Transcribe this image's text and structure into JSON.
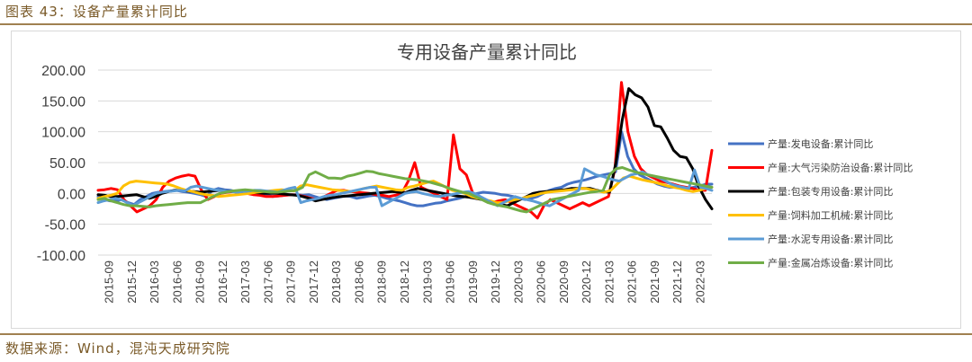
{
  "figure": {
    "title": "图表 43：设备产量累计同比",
    "source": "数据来源：Wind，混沌天成研究院"
  },
  "chart_data": {
    "type": "line",
    "title": "专用设备产量累计同比",
    "xlabel": "",
    "ylabel": "",
    "ylim": [
      -100,
      200
    ],
    "y_ticks": [
      "200.00",
      "150.00",
      "100.00",
      "50.00",
      "0.00",
      "-50.00",
      "-100.00"
    ],
    "y_tick_values": [
      200,
      150,
      100,
      50,
      0,
      -50,
      -100
    ],
    "x_tick_labels": [
      "2015-09",
      "2015-12",
      "2016-03",
      "2016-06",
      "2016-09",
      "2016-12",
      "2017-03",
      "2017-06",
      "2017-09",
      "2017-12",
      "2018-03",
      "2018-06",
      "2018-09",
      "2018-12",
      "2019-03",
      "2019-06",
      "2019-09",
      "2019-12",
      "2020-03",
      "2020-06",
      "2020-09",
      "2020-12",
      "2021-03",
      "2021-06",
      "2021-09",
      "2021-12",
      "2022-03"
    ],
    "grid": true,
    "legend_position": "right",
    "series": [
      {
        "name": "产量:发电设备:累计同比",
        "color": "#4472C4",
        "values": [
          -5,
          -10,
          -12,
          -12,
          -10,
          -15,
          -18,
          -10,
          -5,
          0,
          2,
          3,
          4,
          5,
          3,
          2,
          0,
          -2,
          -5,
          5,
          8,
          6,
          5,
          3,
          2,
          1,
          0,
          -2,
          -3,
          -5,
          -4,
          -3,
          -2,
          -2,
          -3,
          -2,
          -5,
          -8,
          -10,
          -8,
          -6,
          -4,
          -5,
          -8,
          -6,
          -4,
          -3,
          -5,
          -8,
          -10,
          -12,
          -15,
          -18,
          -20,
          -20,
          -18,
          -16,
          -15,
          -12,
          -10,
          -8,
          -5,
          -3,
          0,
          2,
          1,
          0,
          -2,
          -3,
          -5,
          -8,
          -10,
          -8,
          -5,
          0,
          5,
          8,
          10,
          15,
          18,
          20,
          22,
          25,
          28,
          30,
          32,
          35,
          100,
          60,
          40,
          30,
          25,
          20,
          15,
          12,
          10,
          10,
          8,
          8,
          10,
          12,
          15,
          15
        ]
      },
      {
        "name": "产量:大气污染防治设备:累计同比",
        "color": "#FF0000",
        "values": [
          5,
          6,
          8,
          6,
          -10,
          -20,
          -30,
          -25,
          -20,
          -10,
          10,
          20,
          25,
          28,
          30,
          28,
          5,
          -10,
          -5,
          0,
          2,
          3,
          1,
          0,
          -2,
          -3,
          -5,
          -5,
          -4,
          -3,
          -2,
          -3,
          -5,
          -8,
          -10,
          -5,
          0,
          5,
          5,
          3,
          2,
          1,
          0,
          -2,
          -3,
          -5,
          -3,
          0,
          20,
          50,
          10,
          5,
          0,
          -5,
          -10,
          95,
          40,
          30,
          0,
          -5,
          -10,
          -15,
          -12,
          -10,
          -15,
          -20,
          -25,
          -30,
          -40,
          -20,
          -10,
          -15,
          -20,
          -25,
          -20,
          -15,
          -20,
          -15,
          -10,
          -5,
          40,
          180,
          100,
          60,
          40,
          30,
          25,
          20,
          18,
          15,
          12,
          10,
          8,
          5,
          5,
          70
        ]
      },
      {
        "name": "产量:包装专用设备:累计同比",
        "color": "#000000",
        "values": [
          -2,
          -3,
          -5,
          -5,
          -4,
          -3,
          -2,
          -5,
          -8,
          -5,
          0,
          3,
          5,
          5,
          4,
          3,
          2,
          3,
          4,
          5,
          4,
          3,
          2,
          2,
          2,
          1,
          0,
          0,
          0,
          -1,
          -2,
          -3,
          -5,
          -8,
          -12,
          -10,
          -8,
          -6,
          -5,
          -4,
          -3,
          -2,
          -1,
          0,
          1,
          2,
          3,
          2,
          1,
          5,
          8,
          6,
          4,
          2,
          0,
          -2,
          -4,
          -5,
          -6,
          -8,
          -10,
          -12,
          -15,
          -18,
          -20,
          -15,
          -10,
          -5,
          0,
          2,
          3,
          4,
          5,
          6,
          8,
          8,
          8,
          8,
          5,
          3,
          2,
          50,
          120,
          170,
          160,
          155,
          140,
          110,
          108,
          90,
          70,
          60,
          58,
          40,
          10,
          -10,
          -25
        ]
      },
      {
        "name": "产量:饲料加工机械:累计同比",
        "color": "#FFC000",
        "values": [
          -8,
          -5,
          -3,
          0,
          12,
          18,
          20,
          19,
          18,
          17,
          16,
          15,
          12,
          8,
          5,
          3,
          0,
          -2,
          -3,
          -5,
          -4,
          -3,
          -2,
          -1,
          0,
          2,
          3,
          4,
          5,
          6,
          5,
          4,
          12,
          14,
          12,
          10,
          8,
          6,
          5,
          4,
          3,
          5,
          8,
          10,
          12,
          10,
          8,
          6,
          5,
          10,
          12,
          15,
          18,
          20,
          15,
          10,
          5,
          3,
          0,
          -5,
          -8,
          -10,
          -12,
          -15,
          -15,
          -12,
          -10,
          -8,
          -5,
          -3,
          0,
          2,
          3,
          4,
          5,
          6,
          8,
          8,
          6,
          4,
          2,
          5,
          15,
          25,
          28,
          25,
          22,
          20,
          18,
          15,
          12,
          10,
          8,
          5,
          3,
          5,
          8,
          10
        ]
      },
      {
        "name": "产量:水泥专用设备:累计同比",
        "color": "#5B9BD5",
        "values": [
          -15,
          -12,
          -10,
          -8,
          -10,
          -15,
          -20,
          -15,
          -10,
          -5,
          0,
          2,
          3,
          4,
          5,
          4,
          10,
          12,
          10,
          8,
          6,
          5,
          4,
          3,
          2,
          3,
          4,
          5,
          5,
          4,
          3,
          2,
          5,
          8,
          10,
          -15,
          -12,
          -10,
          -8,
          -5,
          -3,
          -2,
          0,
          2,
          4,
          6,
          8,
          10,
          10,
          -20,
          -15,
          -10,
          -5,
          0,
          2,
          3,
          0,
          -2,
          -4,
          -5,
          -3,
          -2,
          0,
          2,
          3,
          0,
          -5,
          -10,
          -15,
          -20,
          -15,
          -10,
          -5,
          -8,
          -10,
          -12,
          -15,
          -18,
          -20,
          -15,
          -10,
          -5,
          0,
          5,
          40,
          35,
          30,
          28,
          25,
          22,
          20,
          25,
          30,
          32,
          35,
          30,
          28,
          25,
          20,
          15,
          12,
          10,
          8,
          38,
          10,
          8,
          5
        ]
      },
      {
        "name": "产量:金属冶炼设备:累计同比",
        "color": "#70AD47",
        "values": [
          -10,
          -8,
          -12,
          -15,
          -18,
          -20,
          -20,
          -21,
          -22,
          -20,
          -19,
          -18,
          -17,
          -16,
          -15,
          -15,
          -15,
          -10,
          -5,
          0,
          2,
          4,
          5,
          6,
          5,
          4,
          3,
          2,
          2,
          3,
          4,
          5,
          10,
          30,
          35,
          30,
          25,
          25,
          24,
          28,
          30,
          33,
          36,
          35,
          32,
          30,
          28,
          26,
          24,
          23,
          22,
          20,
          18,
          15,
          12,
          8,
          5,
          2,
          0,
          -5,
          -10,
          -15,
          -18,
          -20,
          -22,
          -25,
          -28,
          -30,
          -25,
          -20,
          -15,
          -10,
          -8,
          -6,
          -4,
          -2,
          0,
          2,
          3,
          5,
          30,
          40,
          42,
          38,
          35,
          32,
          30,
          28,
          26,
          24,
          22,
          20,
          18,
          16,
          14,
          12,
          10
        ]
      }
    ]
  }
}
